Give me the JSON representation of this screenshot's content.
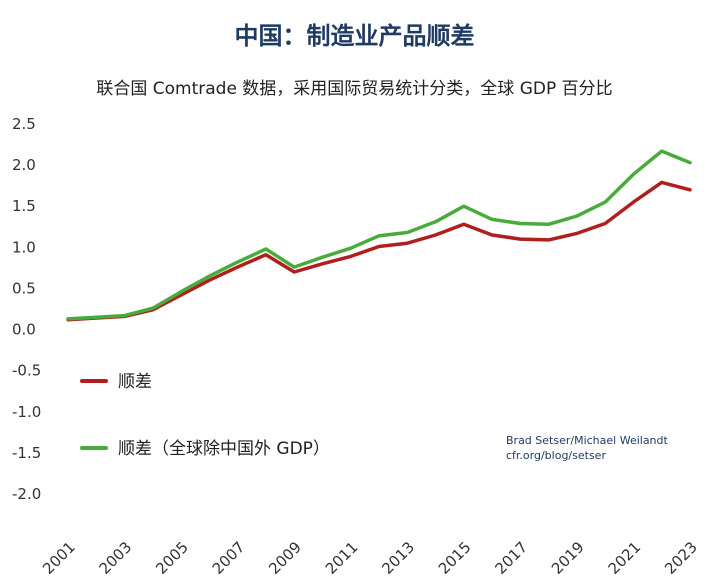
{
  "chart_data": {
    "type": "line",
    "title": "中国：制造业产品顺差",
    "subtitle": "联合国 Comtrade 数据，采用国际贸易统计分类，全球 GDP 百分比",
    "xlabel": "",
    "ylabel": "",
    "ylim": [
      -2.0,
      2.5
    ],
    "yticks": [
      "2.5",
      "2.0",
      "1.5",
      "1.0",
      "0.5",
      "0.0",
      "-0.5",
      "-1.0",
      "-1.5",
      "-2.0"
    ],
    "x": [
      2001,
      2002,
      2003,
      2004,
      2005,
      2006,
      2007,
      2008,
      2009,
      2010,
      2011,
      2012,
      2013,
      2014,
      2015,
      2016,
      2017,
      2018,
      2019,
      2020,
      2021,
      2022,
      2023
    ],
    "xticks": [
      "2001",
      "2003",
      "2005",
      "2007",
      "2009",
      "2011",
      "2013",
      "2015",
      "2017",
      "2019",
      "2021",
      "2023"
    ],
    "series": [
      {
        "name": "顺差",
        "color": "#b01e1e",
        "values": [
          0.12,
          0.14,
          0.16,
          0.24,
          0.42,
          0.6,
          0.76,
          0.91,
          0.7,
          0.8,
          0.89,
          1.01,
          1.05,
          1.15,
          1.28,
          1.15,
          1.1,
          1.09,
          1.17,
          1.29,
          1.55,
          1.79,
          1.7
        ]
      },
      {
        "name": "顺差（全球除中国外 GDP）",
        "color": "#4aab3d",
        "values": [
          0.13,
          0.15,
          0.17,
          0.26,
          0.46,
          0.65,
          0.82,
          0.98,
          0.76,
          0.88,
          0.99,
          1.14,
          1.18,
          1.31,
          1.5,
          1.34,
          1.29,
          1.28,
          1.38,
          1.55,
          1.89,
          2.17,
          2.03
        ]
      }
    ],
    "legend": "left",
    "grid": false,
    "credit_lines": [
      "Brad Setser/Michael Weilandt",
      "cfr.org/blog/setser"
    ]
  }
}
